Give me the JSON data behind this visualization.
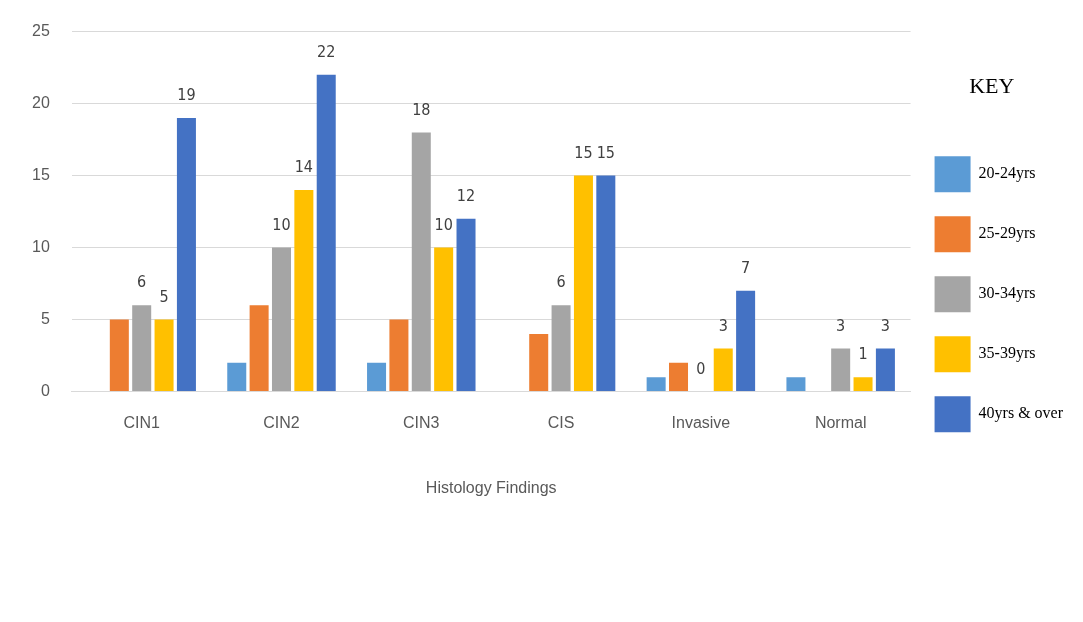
{
  "chart_data": {
    "type": "bar",
    "xlabel": "Histology Findings",
    "legend_title": "KEY",
    "legend": "right",
    "categories": [
      "CIN1",
      "CIN2",
      "CIN3",
      "CIS",
      "Invasive",
      "Normal"
    ],
    "series": [
      {
        "name": "20-24yrs",
        "color": "#5b9bd5",
        "values": [
          0,
          2,
          2,
          0,
          1,
          1
        ],
        "value_labels": [
          null,
          null,
          null,
          null,
          null,
          null
        ]
      },
      {
        "name": "25-29yrs",
        "color": "#ed7d31",
        "values": [
          5,
          6,
          5,
          4,
          2,
          0
        ],
        "value_labels": [
          null,
          null,
          null,
          null,
          null,
          null
        ]
      },
      {
        "name": "30-34yrs",
        "color": "#a5a5a5",
        "values": [
          6,
          10,
          18,
          6,
          0,
          3
        ],
        "value_labels": [
          "6",
          "10",
          "18",
          "6",
          "0",
          "3"
        ]
      },
      {
        "name": "35-39yrs",
        "color": "#ffc000",
        "values": [
          5,
          14,
          10,
          15,
          3,
          1
        ],
        "value_labels": [
          "5",
          "14",
          "10",
          "15",
          "3",
          "1"
        ]
      },
      {
        "name": "40yrs & over",
        "color": "#4472c4",
        "values": [
          19,
          22,
          12,
          15,
          7,
          3
        ],
        "value_labels": [
          "19",
          "22",
          "12",
          "15",
          "7",
          "3"
        ]
      }
    ],
    "ylim": [
      0,
      25
    ],
    "yticks": [
      0,
      5,
      10,
      15,
      20,
      25
    ],
    "grid": "y"
  }
}
